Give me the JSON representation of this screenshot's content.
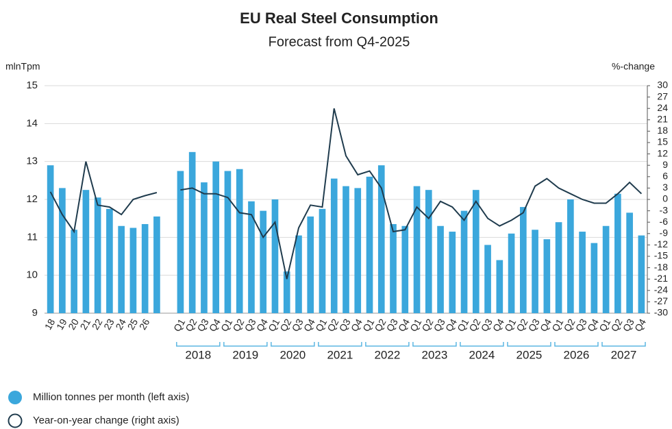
{
  "chart_data": {
    "type": "bar",
    "title": "EU Real Steel Consumption",
    "subtitle": "Forecast from Q4-2025",
    "y_label": "mlnTpm",
    "y2_label": "%-change",
    "categories": [
      "18",
      "19",
      "20",
      "21",
      "22",
      "23",
      "24",
      "25",
      "26",
      null,
      null,
      "Q1",
      "Q2",
      "Q3",
      "Q4",
      "Q1",
      "Q2",
      "Q3",
      "Q4",
      "Q1",
      "Q2",
      "Q3",
      "Q4",
      "Q1",
      "Q2",
      "Q3",
      "Q4",
      "Q1",
      "Q2",
      "Q3",
      "Q4",
      "Q1",
      "Q2",
      "Q3",
      "Q4",
      "Q1",
      "Q2",
      "Q3",
      "Q4",
      "Q1",
      "Q2",
      "Q3",
      "Q4",
      "Q1",
      "Q2",
      "Q3",
      "Q4",
      "Q1",
      "Q2",
      "Q3",
      "Q4"
    ],
    "year_groups": [
      "2018",
      "2019",
      "2020",
      "2021",
      "2022",
      "2023",
      "2024",
      "2025",
      "2026",
      "2027"
    ],
    "series": [
      {
        "name": "Million tonnes per month (left axis)",
        "type": "bar",
        "color": "#3ba7dc",
        "values": [
          12.9,
          12.3,
          11.2,
          12.25,
          12.05,
          11.75,
          11.3,
          11.25,
          11.35,
          11.55,
          null,
          12.75,
          13.25,
          12.45,
          13.0,
          12.75,
          12.8,
          11.95,
          11.7,
          12.0,
          10.1,
          11.05,
          11.55,
          11.75,
          12.55,
          12.35,
          12.3,
          12.6,
          12.9,
          11.35,
          11.3,
          12.35,
          12.25,
          11.3,
          11.15,
          11.7,
          12.25,
          10.8,
          10.4,
          11.1,
          11.8,
          11.2,
          10.95,
          11.4,
          12.0,
          11.15,
          10.85,
          11.3,
          12.15,
          11.65,
          11.05
        ]
      },
      {
        "name": "Year-on-year change (right axis)",
        "type": "line",
        "axis": "y2",
        "color": "#1f3b4d",
        "values": [
          2,
          -4,
          -8.5,
          10,
          -1.5,
          -2,
          -4,
          0,
          1,
          1.8,
          null,
          2.5,
          3,
          1.5,
          1.5,
          0.5,
          -3.5,
          -4,
          -10,
          -6,
          -21,
          -7.5,
          -1.5,
          -2,
          24,
          11.5,
          6.5,
          7.5,
          3,
          -8.5,
          -8,
          -2,
          -5,
          -0.5,
          -2,
          -5.5,
          -0.5,
          -5,
          -7,
          -5.5,
          -3.5,
          3.5,
          5.5,
          3,
          1.5,
          0,
          -1,
          -1,
          1.5,
          4.5,
          1.5
        ]
      }
    ],
    "ylim": [
      9,
      15
    ],
    "yticks": [
      9,
      10,
      11,
      12,
      13,
      14,
      15
    ],
    "y2lim": [
      -30,
      30
    ],
    "y2ticks": [
      -30,
      -27,
      -24,
      -21,
      -18,
      -15,
      -12,
      -9,
      -6,
      -3,
      0,
      3,
      6,
      9,
      12,
      15,
      18,
      21,
      24,
      27,
      30
    ],
    "grid": true
  }
}
